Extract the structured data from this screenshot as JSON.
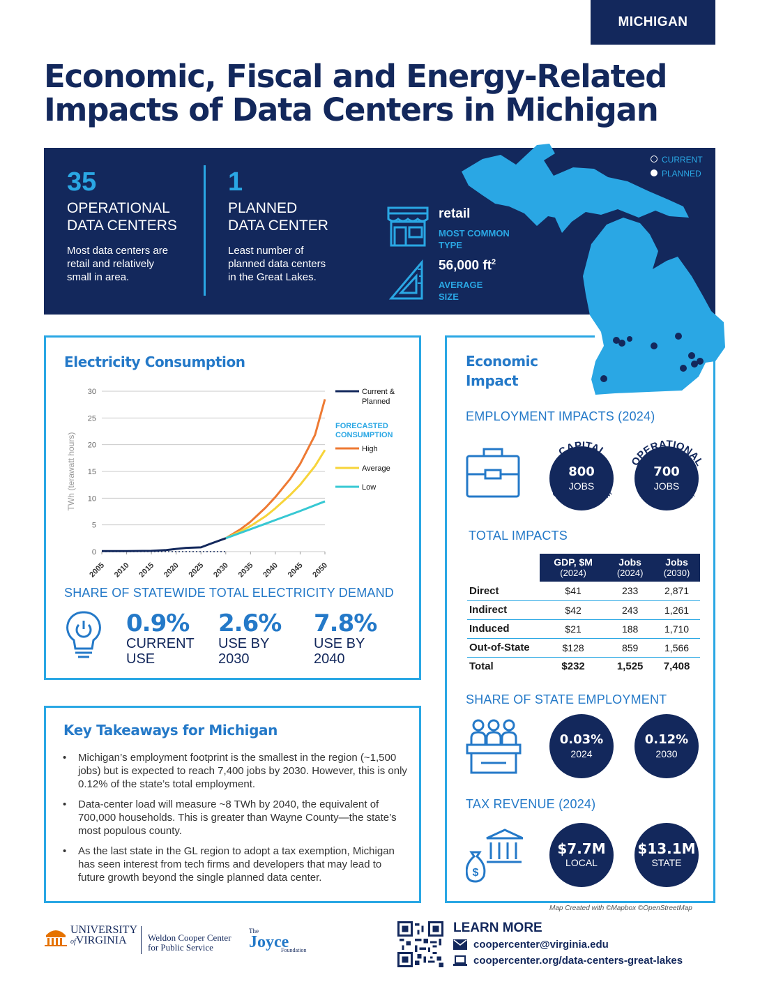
{
  "state_tab": "MICHIGAN",
  "title_line1": "Economic, Fiscal and Energy-Related",
  "title_line2": "Impacts of Data Centers in Michigan",
  "banner": {
    "operational": {
      "number": "35",
      "title1": "OPERATIONAL",
      "title2": "DATA CENTERS",
      "desc1": "Most data centers are",
      "desc2": "retail and relatively",
      "desc3": "small in area."
    },
    "planned": {
      "number": "1",
      "title1": "PLANNED",
      "title2": "DATA CENTER",
      "desc1": "Least number of",
      "desc2": "planned data centers",
      "desc3": "in the Great Lakes."
    },
    "type": {
      "value": "retail",
      "label1": "MOST COMMON",
      "label2": "TYPE"
    },
    "size": {
      "value": "56,000 ft",
      "sup": "2",
      "label1": "AVERAGE",
      "label2": "SIZE"
    },
    "map_legend": {
      "current": "CURRENT",
      "planned": "PLANNED"
    }
  },
  "electricity": {
    "title": "Electricity Consumption",
    "share_title": "SHARE OF STATEWIDE TOTAL ELECTRICITY DEMAND",
    "stats": [
      {
        "value": "0.9%",
        "label1": "CURRENT",
        "label2": "USE"
      },
      {
        "value": "2.6%",
        "label1": "USE BY",
        "label2": "2030"
      },
      {
        "value": "7.8%",
        "label1": "USE BY",
        "label2": "2040"
      }
    ]
  },
  "chart_data": {
    "type": "line",
    "x": [
      2005,
      2010,
      2015,
      2020,
      2025,
      2030,
      2035,
      2040,
      2045,
      2050
    ],
    "ylabel": "TWh (terawatt hours)",
    "ylim": [
      0,
      30
    ],
    "yticks": [
      0,
      5,
      10,
      15,
      20,
      25,
      30
    ],
    "xticks": [
      "2005",
      "2010",
      "2015",
      "2020",
      "2025",
      "2030",
      "2035",
      "2040",
      "2045",
      "2050"
    ],
    "legend_forecast_title1": "FORECASTED",
    "legend_forecast_title2": "CONSUMPTION",
    "series": [
      {
        "name": "Current & Planned",
        "name2": "",
        "color": "#13285c",
        "x": [
          2005,
          2010,
          2015,
          2018,
          2020,
          2022,
          2025,
          2027,
          2030
        ],
        "values": [
          0.1,
          0.1,
          0.15,
          0.3,
          0.5,
          0.7,
          0.8,
          1.5,
          2.5
        ]
      },
      {
        "name": "High",
        "color": "#ee7a33",
        "x": [
          2030,
          2033,
          2035,
          2038,
          2040,
          2043,
          2045,
          2048,
          2050
        ],
        "values": [
          2.5,
          4.2,
          5.6,
          8.2,
          10.2,
          13.6,
          16.4,
          21.8,
          28.5
        ]
      },
      {
        "name": "Average",
        "color": "#f7d43a",
        "x": [
          2030,
          2033,
          2035,
          2038,
          2040,
          2043,
          2045,
          2048,
          2050
        ],
        "values": [
          2.5,
          3.8,
          4.8,
          6.6,
          8.1,
          10.6,
          12.5,
          16.0,
          19.0
        ]
      },
      {
        "name": "Low",
        "color": "#37c8d3",
        "x": [
          2030,
          2035,
          2040,
          2045,
          2050
        ],
        "values": [
          2.5,
          4.2,
          5.9,
          7.6,
          9.4
        ]
      }
    ]
  },
  "takeaways": {
    "title": "Key Takeaways for Michigan",
    "items": [
      "Michigan’s employment footprint is the smallest in the region (~1,500 jobs) but is expected to reach 7,400 jobs by 2030. However, this is only 0.12% of the state’s total employment.",
      "Data-center load will measure ~8 TWh by 2040, the equivalent of 700,000 households. This is greater than Wayne County—the state’s most populous county.",
      "As the last state in the GL region to adopt a tax exemption, Michigan has seen interest from tech firms and developers that may lead to future growth beyond the single planned data center."
    ]
  },
  "economic": {
    "title1": "Economic",
    "title2": "Impact",
    "employment_title": "EMPLOYMENT IMPACTS (2024)",
    "capital": {
      "arc_top": "CAPITAL",
      "value": "800",
      "unit": "JOBS",
      "arc_bottom": "SHORT-TERM"
    },
    "operational": {
      "arc_top": "OPERATIONAL",
      "value": "700",
      "unit": "JOBS",
      "arc_bottom": "LONG-TERM"
    },
    "total_title": "TOTAL IMPACTS",
    "table": {
      "headers": [
        {
          "label": "GDP, $M",
          "year": "(2024)"
        },
        {
          "label": "Jobs",
          "year": "(2024)"
        },
        {
          "label": "Jobs",
          "year": "(2030)"
        }
      ],
      "rows": [
        {
          "label": "Direct",
          "gdp": "$41",
          "jobs24": "233",
          "jobs30": "2,871"
        },
        {
          "label": "Indirect",
          "gdp": "$42",
          "jobs24": "243",
          "jobs30": "1,261"
        },
        {
          "label": "Induced",
          "gdp": "$21",
          "jobs24": "188",
          "jobs30": "1,710"
        },
        {
          "label": "Out-of-State",
          "gdp": "$128",
          "jobs24": "859",
          "jobs30": "1,566"
        }
      ],
      "total": {
        "label": "Total",
        "gdp": "$232",
        "jobs24": "1,525",
        "jobs30": "7,408"
      }
    },
    "share_title": "SHARE OF STATE EMPLOYMENT",
    "share": [
      {
        "value": "0.03%",
        "year": "2024"
      },
      {
        "value": "0.12%",
        "year": "2030"
      }
    ],
    "tax_title": "TAX REVENUE (2024)",
    "tax": [
      {
        "value": "$7.7M",
        "label": "LOCAL"
      },
      {
        "value": "$13.1M",
        "label": "STATE"
      }
    ]
  },
  "map_credit": "Map Created with ©Mapbox ©OpenStreetMap",
  "footer": {
    "uva1": "UNIVERSITY",
    "uva_of": "of",
    "uva2": "VIRGINIA",
    "weldon1": "Weldon Cooper Center",
    "weldon2": "for Public Service",
    "joyce_the": "The",
    "joyce": "Joyce",
    "joyce_foundation": "Foundation",
    "learn_more": "LEARN MORE",
    "email": "coopercenter@virginia.edu",
    "url": "coopercenter.org/data-centers-great-lakes"
  },
  "colors": {
    "navy": "#13285c",
    "cyan": "#2aa7e4",
    "blue": "#2479c8",
    "map": "#2aa7e4"
  }
}
